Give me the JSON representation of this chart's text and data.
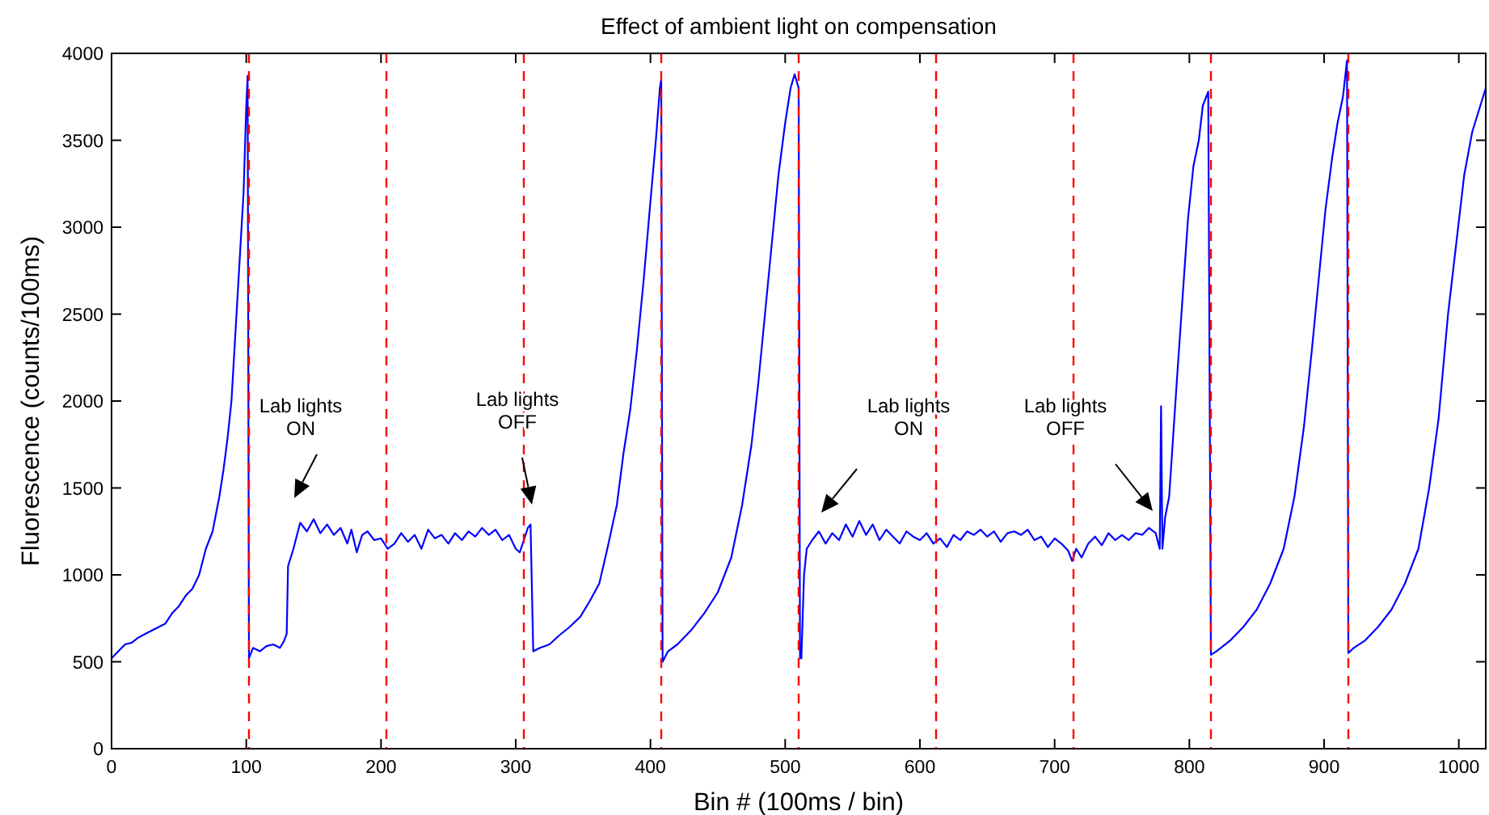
{
  "chart_data": {
    "type": "line",
    "title": "Effect of ambient light on compensation",
    "xlabel": "Bin # (100ms / bin)",
    "ylabel": "Fluorescence (counts/100ms)",
    "xlim": [
      0,
      1020
    ],
    "ylim": [
      0,
      4000
    ],
    "xticks": [
      0,
      100,
      200,
      300,
      400,
      500,
      600,
      700,
      800,
      900,
      1000
    ],
    "yticks": [
      0,
      500,
      1000,
      1500,
      2000,
      2500,
      3000,
      3500,
      4000
    ],
    "grid": false,
    "marker": "none",
    "line_style": "solid",
    "series": [
      {
        "color": "#0000ff",
        "x": [
          0,
          5,
          10,
          15,
          20,
          25,
          30,
          35,
          40,
          45,
          50,
          55,
          60,
          65,
          70,
          75,
          80,
          83,
          86,
          89,
          92,
          95,
          98,
          100,
          101,
          102,
          105,
          110,
          115,
          120,
          125,
          128,
          130,
          131,
          135,
          140,
          145,
          150,
          155,
          160,
          165,
          170,
          175,
          178,
          182,
          186,
          190,
          195,
          200,
          205,
          210,
          215,
          220,
          225,
          230,
          235,
          240,
          245,
          250,
          255,
          260,
          265,
          270,
          275,
          280,
          285,
          290,
          295,
          300,
          303,
          306,
          309,
          311,
          313,
          318,
          325,
          332,
          340,
          348,
          355,
          362,
          368,
          375,
          380,
          385,
          390,
          395,
          400,
          404,
          407,
          408,
          409,
          413,
          420,
          430,
          440,
          450,
          460,
          468,
          475,
          480,
          485,
          490,
          495,
          500,
          504,
          507,
          510,
          511,
          512,
          514,
          516,
          520,
          525,
          530,
          535,
          540,
          545,
          550,
          555,
          560,
          565,
          570,
          575,
          580,
          585,
          590,
          595,
          600,
          605,
          610,
          615,
          620,
          625,
          630,
          635,
          640,
          645,
          650,
          655,
          660,
          665,
          670,
          675,
          680,
          685,
          690,
          695,
          700,
          705,
          710,
          713,
          716,
          720,
          725,
          730,
          735,
          740,
          745,
          750,
          755,
          760,
          765,
          770,
          775,
          778,
          779,
          780,
          782,
          785,
          788,
          791,
          795,
          799,
          803,
          807,
          810,
          814,
          816,
          820,
          830,
          840,
          850,
          860,
          870,
          878,
          885,
          891,
          896,
          901,
          906,
          910,
          914,
          917,
          918,
          922,
          930,
          940,
          950,
          960,
          970,
          978,
          985,
          992,
          998,
          1004,
          1010,
          1016,
          1020
        ],
        "values": [
          520,
          560,
          600,
          610,
          640,
          660,
          680,
          700,
          720,
          780,
          820,
          880,
          920,
          1000,
          1150,
          1250,
          1450,
          1600,
          1780,
          2000,
          2400,
          2800,
          3200,
          3700,
          3870,
          520,
          580,
          560,
          590,
          600,
          580,
          620,
          660,
          1050,
          1150,
          1300,
          1250,
          1320,
          1240,
          1290,
          1230,
          1270,
          1180,
          1260,
          1130,
          1230,
          1250,
          1200,
          1210,
          1150,
          1180,
          1240,
          1190,
          1230,
          1150,
          1260,
          1210,
          1230,
          1180,
          1240,
          1200,
          1250,
          1220,
          1270,
          1230,
          1260,
          1200,
          1230,
          1150,
          1130,
          1200,
          1270,
          1290,
          560,
          580,
          600,
          650,
          700,
          760,
          850,
          950,
          1150,
          1400,
          1700,
          1950,
          2300,
          2700,
          3150,
          3500,
          3800,
          3850,
          500,
          560,
          600,
          680,
          780,
          900,
          1100,
          1400,
          1750,
          2100,
          2500,
          2900,
          3300,
          3600,
          3800,
          3880,
          3800,
          520,
          520,
          1000,
          1150,
          1200,
          1250,
          1180,
          1240,
          1200,
          1290,
          1220,
          1310,
          1230,
          1290,
          1200,
          1260,
          1220,
          1180,
          1250,
          1220,
          1200,
          1240,
          1180,
          1210,
          1160,
          1230,
          1200,
          1250,
          1230,
          1260,
          1220,
          1250,
          1190,
          1240,
          1250,
          1230,
          1260,
          1200,
          1220,
          1160,
          1210,
          1180,
          1140,
          1080,
          1150,
          1100,
          1180,
          1220,
          1170,
          1240,
          1200,
          1230,
          1200,
          1240,
          1230,
          1270,
          1240,
          1150,
          1970,
          1150,
          1330,
          1450,
          1800,
          2150,
          2600,
          3050,
          3350,
          3500,
          3700,
          3780,
          540,
          560,
          620,
          700,
          800,
          950,
          1150,
          1450,
          1850,
          2300,
          2700,
          3100,
          3400,
          3600,
          3750,
          3960,
          550,
          580,
          620,
          700,
          800,
          950,
          1150,
          1500,
          1900,
          2500,
          2900,
          3300,
          3550,
          3700,
          3800
        ]
      }
    ],
    "ref_lines": [
      {
        "axis": "x",
        "value": 102,
        "color": "#ff0000",
        "line_style": "dashed"
      },
      {
        "axis": "x",
        "value": 204,
        "color": "#ff0000",
        "line_style": "dashed"
      },
      {
        "axis": "x",
        "value": 306,
        "color": "#ff0000",
        "line_style": "dashed"
      },
      {
        "axis": "x",
        "value": 408,
        "color": "#ff0000",
        "line_style": "dashed"
      },
      {
        "axis": "x",
        "value": 510,
        "color": "#ff0000",
        "line_style": "dashed"
      },
      {
        "axis": "x",
        "value": 612,
        "color": "#ff0000",
        "line_style": "dashed"
      },
      {
        "axis": "x",
        "value": 714,
        "color": "#ff0000",
        "line_style": "dashed"
      },
      {
        "axis": "x",
        "value": 816,
        "color": "#ff0000",
        "line_style": "dashed"
      },
      {
        "axis": "x",
        "value": 918,
        "color": "#ff0000",
        "line_style": "dashed"
      }
    ],
    "annotations": [
      "Lab lights\nON",
      "Lab lights\nOFF",
      "Lab lights\nON",
      "Lab lights\nOFF"
    ]
  }
}
